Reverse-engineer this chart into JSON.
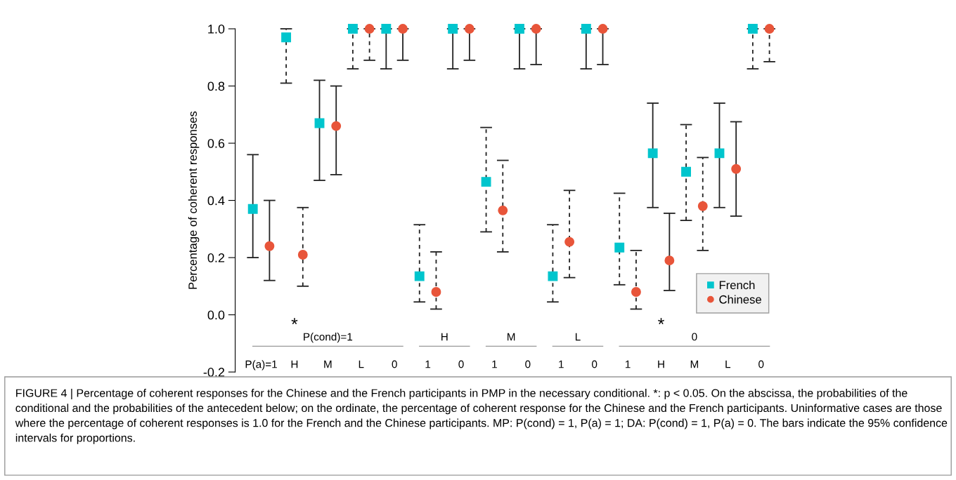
{
  "chart_data": {
    "type": "scatter",
    "ylabel": "Percentage of coherent responses",
    "categories": [
      "P(a)=1",
      "H",
      "M",
      "L",
      "0",
      "1",
      "0",
      "1",
      "0",
      "1",
      "0",
      "1",
      "H",
      "M",
      "L",
      "0"
    ],
    "series": [
      {
        "name": "French",
        "color": "#00c5cd",
        "marker": "square",
        "line_style": "solid",
        "values": [
          0.37,
          null,
          0.67,
          null,
          1.0,
          null,
          1.0,
          null,
          1.0,
          null,
          1.0,
          null,
          0.565,
          null,
          0.565,
          null
        ],
        "errors": [
          [
            0.2,
            0.56
          ],
          null,
          [
            0.47,
            0.82
          ],
          null,
          [
            0.86,
            1.0
          ],
          null,
          [
            0.86,
            1.0
          ],
          null,
          [
            0.86,
            1.0
          ],
          null,
          [
            0.86,
            1.0
          ],
          null,
          [
            0.375,
            0.74
          ],
          null,
          [
            0.375,
            0.74
          ],
          null
        ]
      },
      {
        "name": "Chinese",
        "color": "#e8553a",
        "marker": "circle",
        "line_style": "solid",
        "values": [
          0.24,
          null,
          0.66,
          null,
          1.0,
          null,
          1.0,
          null,
          1.0,
          null,
          1.0,
          null,
          0.19,
          null,
          0.51,
          null
        ],
        "errors": [
          [
            0.12,
            0.4
          ],
          null,
          [
            0.49,
            0.8
          ],
          null,
          [
            0.89,
            1.0
          ],
          null,
          [
            0.89,
            1.0
          ],
          null,
          [
            0.875,
            1.0
          ],
          null,
          [
            0.875,
            1.0
          ],
          null,
          [
            0.085,
            0.355
          ],
          null,
          [
            0.345,
            0.675
          ],
          null
        ]
      },
      {
        "color": "#00c5cd",
        "marker": "square",
        "line_style": "dashed",
        "values": [
          null,
          0.97,
          null,
          1.0,
          null,
          0.135,
          null,
          0.465,
          null,
          0.135,
          null,
          0.235,
          null,
          0.5,
          null,
          1.0
        ],
        "errors": [
          null,
          [
            0.81,
            1.0
          ],
          null,
          [
            0.86,
            1.0
          ],
          null,
          [
            0.045,
            0.315
          ],
          null,
          [
            0.29,
            0.655
          ],
          null,
          [
            0.045,
            0.315
          ],
          null,
          [
            0.105,
            0.425
          ],
          null,
          [
            0.33,
            0.665
          ],
          null,
          [
            0.86,
            1.0
          ]
        ]
      },
      {
        "color": "#e8553a",
        "marker": "circle",
        "line_style": "dashed",
        "values": [
          null,
          0.21,
          null,
          1.0,
          null,
          0.08,
          null,
          0.365,
          null,
          0.255,
          null,
          0.08,
          null,
          0.38,
          null,
          1.0
        ],
        "errors": [
          null,
          [
            0.1,
            0.375
          ],
          null,
          [
            0.89,
            1.0
          ],
          null,
          [
            0.02,
            0.22
          ],
          null,
          [
            0.22,
            0.54
          ],
          null,
          [
            0.13,
            0.435
          ],
          null,
          [
            0.02,
            0.225
          ],
          null,
          [
            0.225,
            0.55
          ],
          null,
          [
            0.885,
            1.0
          ]
        ]
      }
    ],
    "ylim": [
      -0.2,
      1.0
    ],
    "yticks": [
      -0.2,
      {
        "value": 0,
        "label": "0.0"
      },
      0.2,
      0.4,
      0.6,
      0.8,
      {
        "value": 1,
        "label": "1.0"
      }
    ],
    "tick_labels": "y",
    "grid": false,
    "legend": "bottom right",
    "annotations": [
      "P(cond)=1",
      "H",
      "M",
      "L",
      "0",
      "*",
      "*",
      "FIGURE 4 | Percentage of coherent responses for the Chinese and the French participants in PMP in the necessary conditional. *: p < 0.05. On the abscissa, the probabilities of the conditional and the probabilities of the antecedent below; on the ordinate, the percentage of coherent response for the Chinese and the French participants. Uninformative cases are those where the percentage of coherent responses is 1.0 for the French and the Chinese participants. MP: P(cond) = 1, P(a) = 1; DA: P(cond) = 1, P(a) = 0. The bars indicate the 95% confidence intervals for proportions."
    ]
  }
}
